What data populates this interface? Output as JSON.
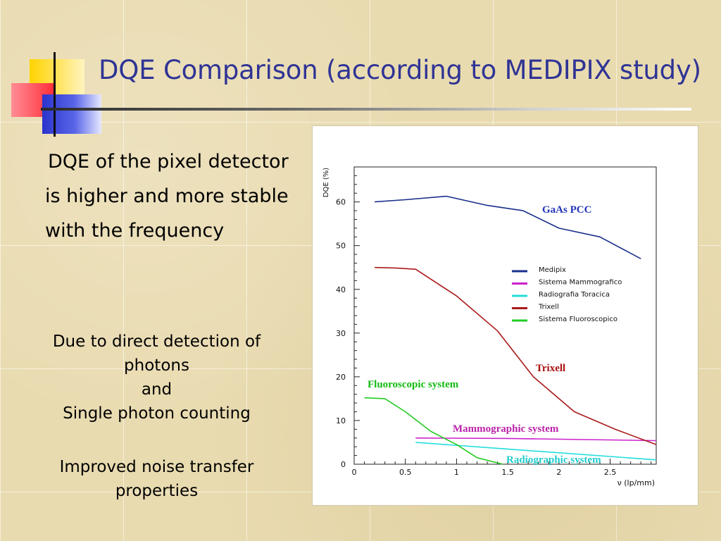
{
  "slide": {
    "title": "DQE Comparison (according to MEDIPIX study)",
    "body_main": "DQE of the pixel detector is higher and more stable with the frequency",
    "body_reason_lines": [
      "Due to direct detection of photons",
      "and",
      "Single photon counting"
    ],
    "body_extra_lines": [
      "Improved noise transfer",
      "properties"
    ]
  },
  "chart_data": {
    "type": "line",
    "title": "",
    "xlabel": "ν (lp/mm)",
    "ylabel": "DQE (%)",
    "xlim": [
      0,
      2.95
    ],
    "ylim": [
      0,
      68
    ],
    "x_ticks": [
      0,
      0.5,
      1,
      1.5,
      2,
      2.5
    ],
    "x_tick_labels": [
      "0",
      "0.5",
      "1",
      "1.5",
      "2",
      "2.5"
    ],
    "y_ticks": [
      0,
      10,
      20,
      30,
      40,
      50,
      60
    ],
    "y_tick_labels": [
      "0",
      "10",
      "20",
      "30",
      "40",
      "50",
      "60"
    ],
    "grid": false,
    "legend_position": "top-right",
    "series": [
      {
        "name": "Medipix",
        "color": "#1a2f8c",
        "label": "GaAs PCC",
        "label_color": "#2233bb",
        "x": [
          0.2,
          0.5,
          0.9,
          1.3,
          1.65,
          2.0,
          2.4,
          2.8
        ],
        "y": [
          60,
          60.5,
          61.3,
          59.2,
          58,
          54,
          52,
          47
        ]
      },
      {
        "name": "Sistema Mammografico",
        "color": "#cc22cc",
        "label": "Mammographic system",
        "label_color": "#bb22aa",
        "x": [
          0.6,
          1.5,
          2.95
        ],
        "y": [
          6.0,
          5.9,
          5.4
        ]
      },
      {
        "name": "Radiografia Toracica",
        "color": "#22dddd",
        "label": "Radiographic system",
        "label_color": "#22cccc",
        "x": [
          0.6,
          2.95
        ],
        "y": [
          5.0,
          1.0
        ]
      },
      {
        "name": "Trixell",
        "color": "#aa1a1a",
        "label": "Trixell",
        "label_color": "#aa1111",
        "x": [
          0.2,
          0.4,
          0.6,
          1.0,
          1.4,
          1.75,
          2.15,
          2.55,
          2.95
        ],
        "y": [
          45,
          44.9,
          44.6,
          38.5,
          30.5,
          20,
          12,
          8,
          4.5
        ]
      },
      {
        "name": "Sistema Fluoroscopico",
        "color": "#22cc22",
        "label": "Fluoroscopic system",
        "label_color": "#11bb11",
        "x": [
          0.1,
          0.3,
          0.5,
          0.75,
          1.0,
          1.2,
          1.45
        ],
        "y": [
          15.2,
          15,
          12,
          7.5,
          4.5,
          1.5,
          0
        ]
      }
    ]
  }
}
